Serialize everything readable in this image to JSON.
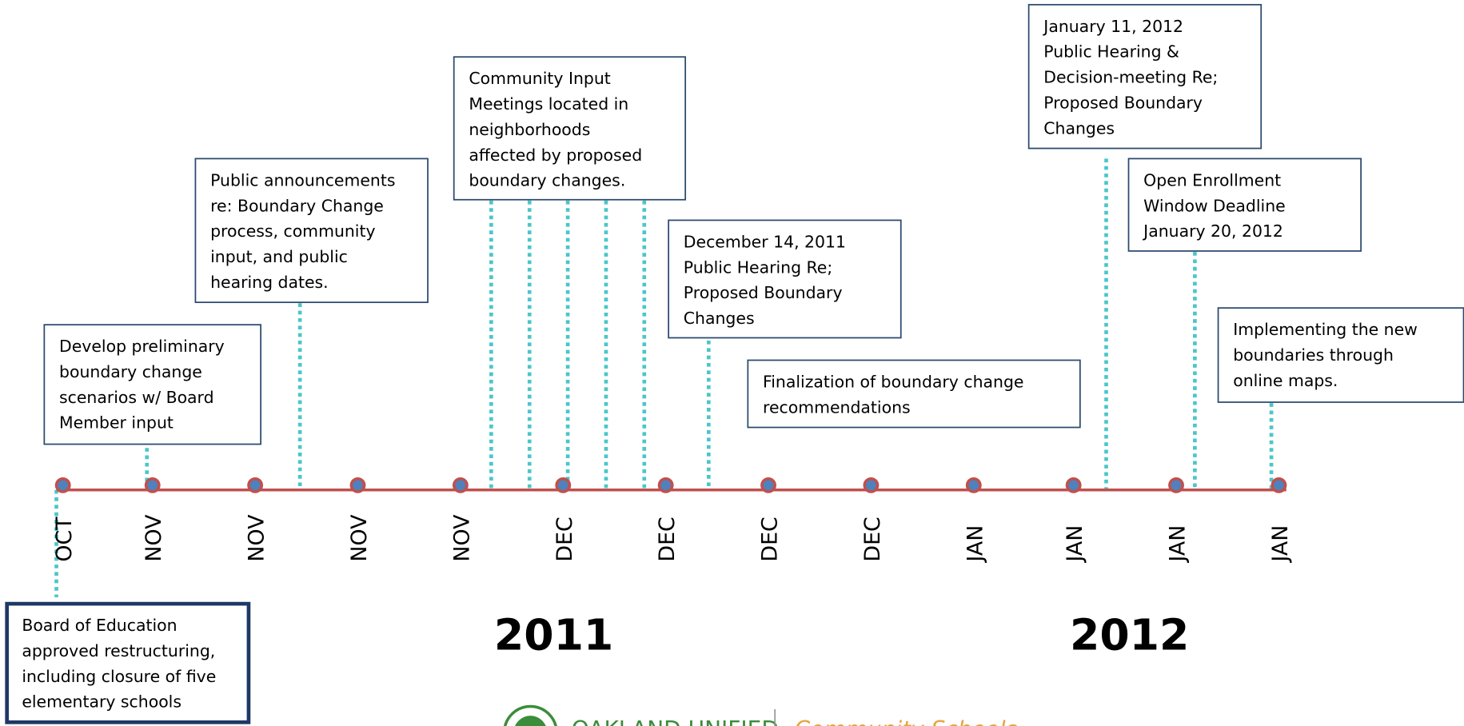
{
  "months": [
    "OCT",
    "NOV",
    "NOV",
    "NOV",
    "NOV",
    "DEC",
    "DEC",
    "DEC",
    "DEC",
    "JAN",
    "JAN",
    "JAN",
    "JAN"
  ],
  "years": [
    "2011",
    "2012"
  ],
  "boxes": [
    {
      "lines": [
        "Develop preliminary",
        "boundary change",
        "scenarios w/ Board",
        "Member input"
      ]
    },
    {
      "lines": [
        "Public announcements",
        "re: Boundary Change",
        "process, community",
        "input, and public",
        "hearing dates."
      ]
    },
    {
      "lines": [
        "Community Input",
        "Meetings located in",
        "neighborhoods",
        "affected by proposed",
        "boundary changes."
      ]
    },
    {
      "lines": [
        "December 14, 2011",
        "Public Hearing Re;",
        "Proposed Boundary",
        "Changes"
      ]
    },
    {
      "lines": [
        "Finalization of boundary change",
        "recommendations"
      ]
    },
    {
      "lines": [
        "January 11, 2012",
        "Public Hearing &",
        "Decision-meeting Re;",
        "Proposed Boundary",
        "Changes"
      ]
    },
    {
      "lines": [
        "Open Enrollment",
        "Window Deadline",
        "January 20, 2012"
      ]
    },
    {
      "lines": [
        "Implementing the new",
        "boundaries through",
        "online maps."
      ]
    },
    {
      "lines": [
        "Board of Education",
        "approved restructuring,",
        "including closure of five",
        "elementary schools"
      ]
    }
  ],
  "footer": {
    "logo_text": "OAKLAND UNIFIED",
    "tagline": "Community Schools"
  }
}
